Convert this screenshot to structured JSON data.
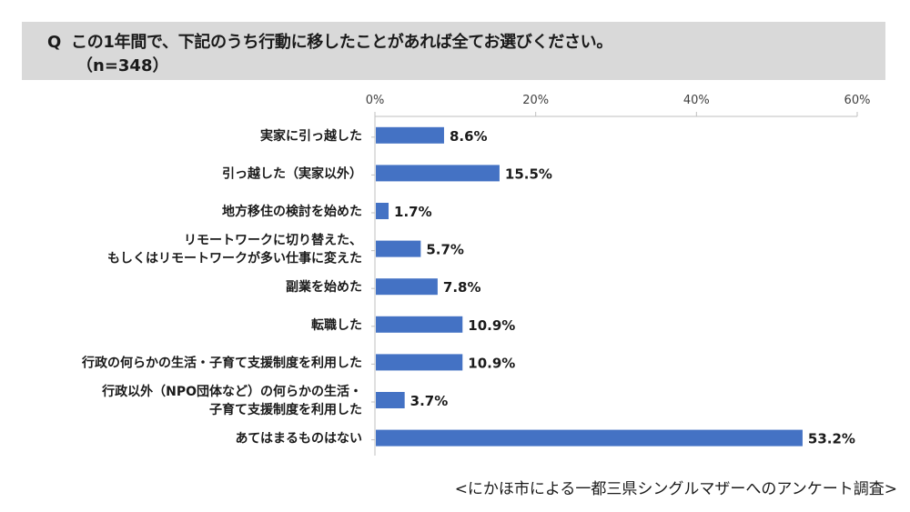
{
  "question": {
    "mark": "Q",
    "text": "この1年間で、下記のうち行動に移したことがあれば全てお選びください。",
    "sample_size": "（n=348）"
  },
  "colors": {
    "bar": "#4472c4",
    "header_bg": "#d9d9d9",
    "axis": "#bfbfbf"
  },
  "chart_data": {
    "type": "bar",
    "orientation": "horizontal",
    "categories": [
      [
        "実家に引っ越した"
      ],
      [
        "引っ越した（実家以外）"
      ],
      [
        "地方移住の検討を始めた"
      ],
      [
        "リモートワークに切り替えた、",
        "もしくはリモートワークが多い仕事に変えた"
      ],
      [
        "副業を始めた"
      ],
      [
        "転職した"
      ],
      [
        "行政の何らかの生活・子育て支援制度を利用した"
      ],
      [
        "行政以外（NPO団体など）の何らかの生活・",
        "子育て支援制度を利用した"
      ],
      [
        "あてはまるものはない"
      ]
    ],
    "values": [
      8.6,
      15.5,
      1.7,
      5.7,
      7.8,
      10.9,
      10.9,
      3.7,
      53.2
    ],
    "value_labels": [
      "8.6%",
      "15.5%",
      "1.7%",
      "5.7%",
      "7.8%",
      "10.9%",
      "10.9%",
      "3.7%",
      "53.2%"
    ],
    "x_ticks": [
      0,
      20,
      40,
      60
    ],
    "x_tick_labels": [
      "0%",
      "20%",
      "40%",
      "60%"
    ],
    "xlim": [
      0,
      60
    ],
    "axis_position": "top",
    "grid": false,
    "legend": "none"
  },
  "source": "<にかほ市による一都三県シングルマザーへのアンケート調査>"
}
